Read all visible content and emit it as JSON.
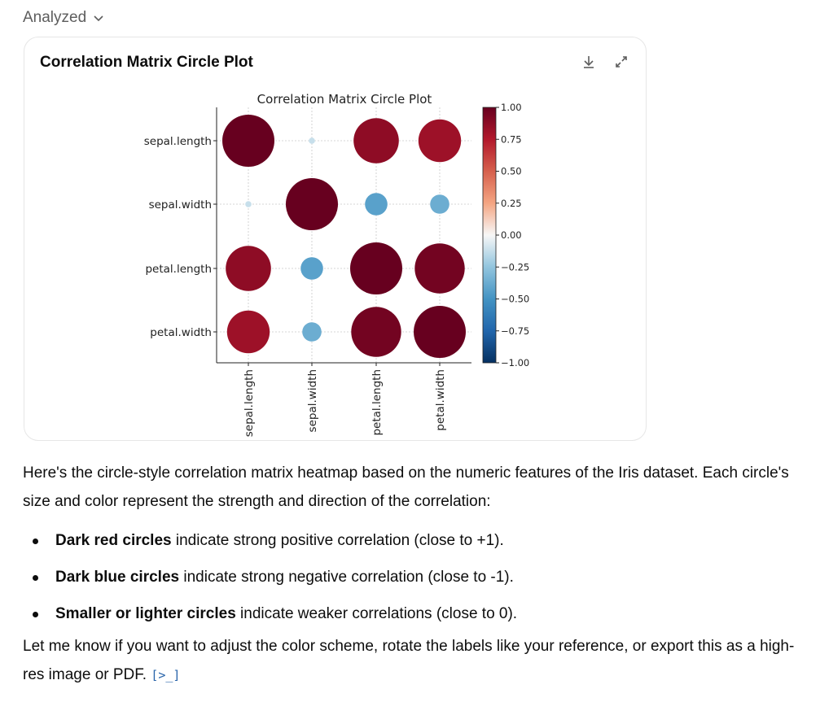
{
  "status": {
    "label": "Analyzed"
  },
  "card": {
    "title": "Correlation Matrix Circle Plot"
  },
  "chart_data": {
    "type": "heatmap",
    "title": "Correlation Matrix Circle Plot",
    "rows": [
      "sepal.length",
      "sepal.width",
      "petal.length",
      "petal.width"
    ],
    "columns": [
      "sepal.length",
      "sepal.width",
      "petal.length",
      "petal.width"
    ],
    "values": [
      [
        1.0,
        -0.12,
        0.87,
        0.82
      ],
      [
        -0.12,
        1.0,
        -0.43,
        -0.37
      ],
      [
        0.87,
        -0.43,
        1.0,
        0.96
      ],
      [
        0.82,
        -0.37,
        0.96,
        1.0
      ]
    ],
    "colorbar": {
      "range": [
        -1,
        1
      ],
      "ticks": [
        "1.00",
        "0.75",
        "0.50",
        "0.25",
        "0.00",
        "−0.25",
        "−0.50",
        "−0.75",
        "−1.00"
      ],
      "colormap": "RdBu_r"
    },
    "grid": true
  },
  "text": {
    "intro": "Here's the circle-style correlation matrix heatmap based on the numeric features of the Iris dataset. Each circle's size and color represent the strength and direction of the correlation:",
    "bullets": [
      {
        "bold": "Dark red circles",
        "rest": " indicate strong positive correlation (close to +1)."
      },
      {
        "bold": "Dark blue circles",
        "rest": " indicate strong negative correlation (close to -1)."
      },
      {
        "bold": "Smaller or lighter circles",
        "rest": " indicate weaker correlations (close to 0)."
      }
    ],
    "closing": "Let me know if you want to adjust the color scheme, rotate the labels like your reference, or export this as a high-res image or PDF. ",
    "code_link": "[>_]"
  },
  "icons": {
    "status": "chevron-down-icon",
    "download": "download-icon",
    "expand": "expand-icon"
  }
}
